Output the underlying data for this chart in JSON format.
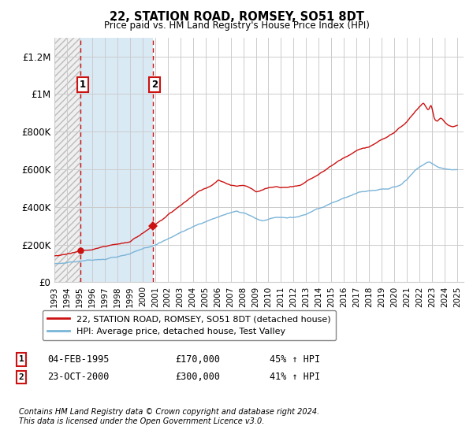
{
  "title": "22, STATION ROAD, ROMSEY, SO51 8DT",
  "subtitle": "Price paid vs. HM Land Registry's House Price Index (HPI)",
  "ylim": [
    0,
    1300000
  ],
  "yticks": [
    0,
    200000,
    400000,
    600000,
    800000,
    1000000,
    1200000
  ],
  "ytick_labels": [
    "£0",
    "£200K",
    "£400K",
    "£600K",
    "£800K",
    "£1M",
    "£1.2M"
  ],
  "xlim_start": 1993.0,
  "xlim_end": 2025.5,
  "legend_line1": "22, STATION ROAD, ROMSEY, SO51 8DT (detached house)",
  "legend_line2": "HPI: Average price, detached house, Test Valley",
  "sale1_date": "04-FEB-1995",
  "sale1_price": 170000,
  "sale1_year": 1995.09,
  "sale1_hpi": "45% ↑ HPI",
  "sale1_label": "1",
  "sale2_date": "23-OCT-2000",
  "sale2_price": 300000,
  "sale2_year": 2000.81,
  "sale2_hpi": "41% ↑ HPI",
  "sale2_label": "2",
  "footer": "Contains HM Land Registry data © Crown copyright and database right 2024.\nThis data is licensed under the Open Government Licence v3.0.",
  "hpi_color": "#7ab4d8",
  "price_color": "#cc1111",
  "sale_marker_color": "#cc1111",
  "vline_color": "#cc1111",
  "hatch_bg_color": "#e8e8e8",
  "blue_fill_color": "#daeaf5",
  "background_color": "#ffffff",
  "grid_color": "#cccccc"
}
